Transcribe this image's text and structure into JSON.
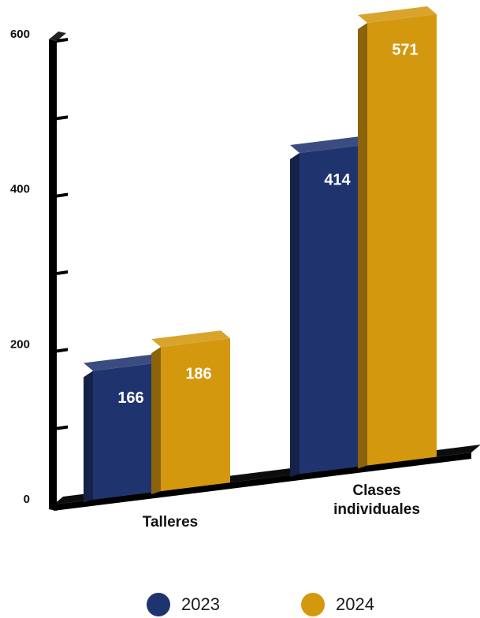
{
  "chart_data": {
    "type": "bar",
    "categories": [
      "Talleres",
      "Clases individuales"
    ],
    "series": [
      {
        "name": "2023",
        "values": [
          166,
          414
        ],
        "color": "#1f346f"
      },
      {
        "name": "2024",
        "values": [
          186,
          571
        ],
        "color": "#d4980f"
      }
    ],
    "y_ticks": [
      "0",
      "200",
      "400",
      "600"
    ],
    "ylim": [
      0,
      600
    ],
    "grid": false,
    "legend_position": "bottom"
  }
}
